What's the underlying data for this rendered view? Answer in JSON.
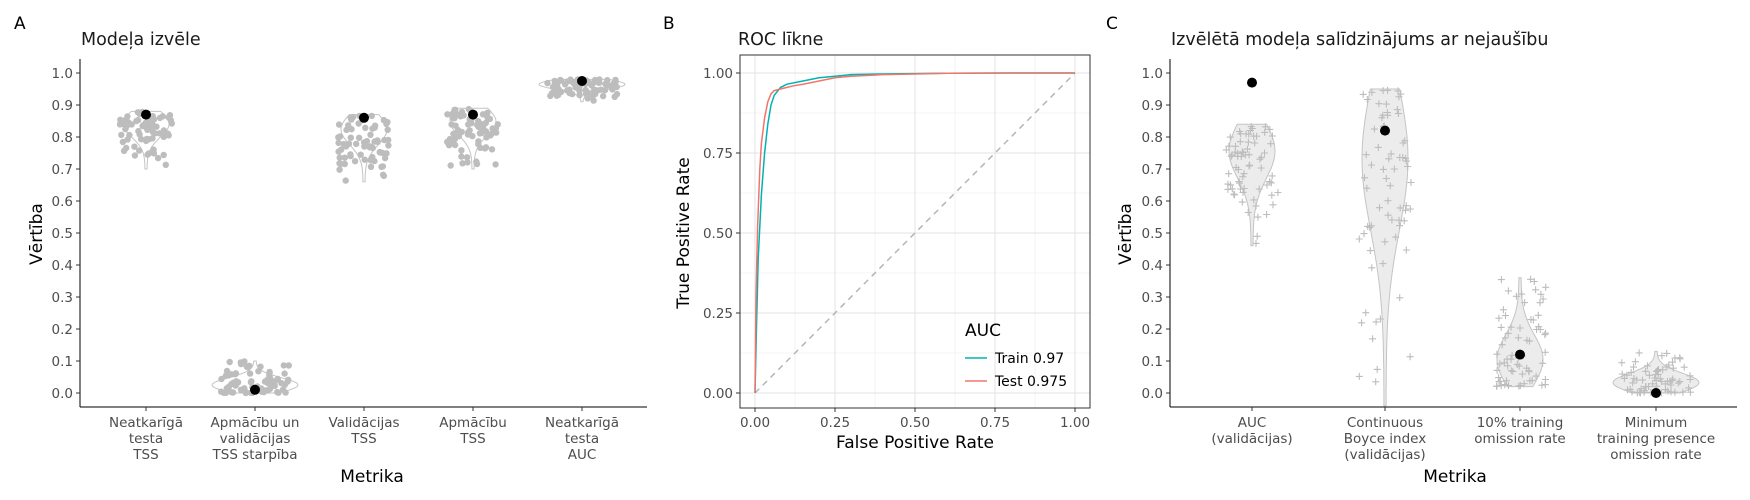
{
  "chart_data": [
    {
      "panel": "A",
      "type": "violin-jitter",
      "title": "Modeļa izvēle",
      "xlabel": "Metrika",
      "ylabel": "Vērtība",
      "ylim": [
        0,
        1.0
      ],
      "yticks": [
        "0.0",
        "0.1",
        "0.2",
        "0.3",
        "0.4",
        "0.5",
        "0.6",
        "0.7",
        "0.8",
        "0.9",
        "1.0"
      ],
      "categories": [
        {
          "lines": [
            "Neatkarīgā",
            "testa",
            "TSS"
          ],
          "min": 0.7,
          "max": 0.88,
          "selected": 0.87
        },
        {
          "lines": [
            "Apmācību un",
            "validācijas",
            "TSS starpība"
          ],
          "min": 0.0,
          "max": 0.1,
          "selected": 0.01
        },
        {
          "lines": [
            "Validācijas",
            "TSS"
          ],
          "min": 0.66,
          "max": 0.87,
          "selected": 0.86
        },
        {
          "lines": [
            "Apmācību",
            "TSS"
          ],
          "min": 0.7,
          "max": 0.89,
          "selected": 0.87
        },
        {
          "lines": [
            "Neatkarīgā",
            "testa",
            "AUC"
          ],
          "min": 0.91,
          "max": 0.98,
          "selected": 0.975
        }
      ],
      "point_color": "#bdbdbd",
      "selected_color": "#000000"
    },
    {
      "panel": "B",
      "type": "line",
      "title": "ROC līkne",
      "xlabel": "False Positive Rate",
      "ylabel": "True Positive Rate",
      "xlim": [
        0,
        1
      ],
      "ylim": [
        0,
        1
      ],
      "xticks": [
        "0.00",
        "0.25",
        "0.50",
        "0.75",
        "1.00"
      ],
      "yticks": [
        "0.00",
        "0.25",
        "0.50",
        "0.75",
        "1.00"
      ],
      "legend": {
        "title": "AUC",
        "position": "bottom-right"
      },
      "series": [
        {
          "name": "Train 0.97",
          "color": "#00b3b3",
          "x": [
            0,
            0.005,
            0.01,
            0.02,
            0.03,
            0.04,
            0.05,
            0.06,
            0.08,
            0.1,
            0.15,
            0.2,
            0.25,
            0.3,
            0.4,
            0.5,
            0.6,
            0.8,
            1.0
          ],
          "y": [
            0,
            0.22,
            0.42,
            0.62,
            0.75,
            0.84,
            0.9,
            0.93,
            0.955,
            0.965,
            0.975,
            0.985,
            0.99,
            0.995,
            0.997,
            0.998,
            0.999,
            1.0,
            1.0
          ]
        },
        {
          "name": "Test 0.975",
          "color": "#f0766d",
          "x": [
            0,
            0.003,
            0.008,
            0.015,
            0.02,
            0.03,
            0.04,
            0.05,
            0.06,
            0.08,
            0.1,
            0.12,
            0.15,
            0.2,
            0.25,
            0.3,
            0.4,
            0.5,
            0.6,
            0.8,
            1.0
          ],
          "y": [
            0,
            0.3,
            0.52,
            0.7,
            0.78,
            0.86,
            0.91,
            0.935,
            0.945,
            0.95,
            0.955,
            0.96,
            0.965,
            0.975,
            0.985,
            0.99,
            0.995,
            0.997,
            0.999,
            1.0,
            1.0
          ]
        }
      ]
    },
    {
      "panel": "C",
      "type": "violin-jitter",
      "title": "Izvēlētā modeļa salīdzinājums ar nejaušību",
      "xlabel": "Metrika",
      "ylabel": "Vērtība",
      "ylim": [
        0,
        1.0
      ],
      "yticks": [
        "0.0",
        "0.1",
        "0.2",
        "0.3",
        "0.4",
        "0.5",
        "0.6",
        "0.7",
        "0.8",
        "0.9",
        "1.0"
      ],
      "categories": [
        {
          "lines": [
            "AUC",
            "(validācijas)"
          ],
          "min": 0.46,
          "max": 0.84,
          "selected": 0.97
        },
        {
          "lines": [
            "Continuous",
            "Boyce index",
            "(validācijas)"
          ],
          "min": -0.04,
          "max": 0.95,
          "selected": 0.82
        },
        {
          "lines": [
            "10% training",
            "omission rate"
          ],
          "min": 0.02,
          "max": 0.36,
          "selected": 0.12
        },
        {
          "lines": [
            "Minimum",
            "training presence",
            "omission rate"
          ],
          "min": 0.0,
          "max": 0.13,
          "selected": 0.0
        }
      ],
      "point_color": "#bdbdbd",
      "selected_color": "#000000"
    }
  ],
  "panel_letters": [
    "A",
    "B",
    "C"
  ],
  "legend_title": "AUC"
}
